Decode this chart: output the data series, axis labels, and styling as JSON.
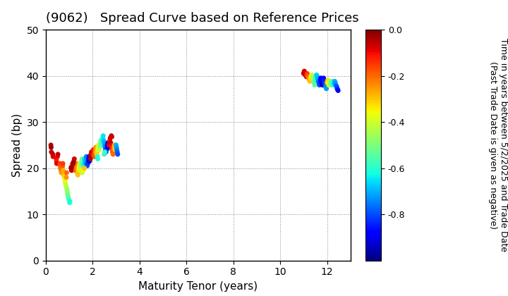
{
  "title": "(9062)   Spread Curve based on Reference Prices",
  "xlabel": "Maturity Tenor (years)",
  "ylabel": "Spread (bp)",
  "colorbar_label_line1": "Time in years between 5/2/2025 and Trade Date",
  "colorbar_label_line2": "(Past Trade Date is given as negative)",
  "xlim": [
    0,
    13
  ],
  "ylim": [
    0,
    50
  ],
  "xticks": [
    0,
    2,
    4,
    6,
    8,
    10,
    12
  ],
  "yticks": [
    0,
    10,
    20,
    30,
    40,
    50
  ],
  "cmap": "jet",
  "clim": [
    -1.0,
    0.0
  ],
  "cticks": [
    0.0,
    -0.2,
    -0.4,
    -0.6,
    -0.8
  ],
  "cluster1": {
    "points": [
      [
        0.22,
        25.0,
        -0.05
      ],
      [
        0.23,
        24.5,
        -0.03
      ],
      [
        0.24,
        23.5,
        -0.07
      ],
      [
        0.3,
        23.0,
        -0.05
      ],
      [
        0.31,
        22.5,
        -0.08
      ],
      [
        0.45,
        22.0,
        -0.1
      ],
      [
        0.46,
        21.5,
        -0.12
      ],
      [
        0.47,
        21.0,
        -0.08
      ],
      [
        0.5,
        22.5,
        -0.1
      ],
      [
        0.52,
        23.0,
        -0.06
      ],
      [
        0.6,
        21.0,
        -0.15
      ],
      [
        0.62,
        20.5,
        -0.18
      ],
      [
        0.63,
        20.0,
        -0.2
      ],
      [
        0.65,
        19.5,
        -0.22
      ],
      [
        0.67,
        19.0,
        -0.25
      ],
      [
        0.7,
        20.0,
        -0.2
      ],
      [
        0.72,
        20.5,
        -0.18
      ],
      [
        0.73,
        21.0,
        -0.15
      ],
      [
        0.75,
        19.5,
        -0.28
      ],
      [
        0.77,
        18.5,
        -0.3
      ],
      [
        0.8,
        18.0,
        -0.32
      ],
      [
        0.82,
        17.5,
        -0.35
      ],
      [
        0.83,
        17.0,
        -0.38
      ],
      [
        0.85,
        16.5,
        -0.4
      ],
      [
        0.87,
        16.0,
        -0.42
      ],
      [
        0.9,
        15.5,
        -0.45
      ],
      [
        0.92,
        15.0,
        -0.48
      ],
      [
        0.93,
        14.5,
        -0.5
      ],
      [
        0.95,
        14.0,
        -0.52
      ],
      [
        0.97,
        13.5,
        -0.55
      ],
      [
        1.0,
        13.0,
        -0.58
      ],
      [
        1.02,
        12.5,
        -0.6
      ],
      [
        1.03,
        12.8,
        -0.62
      ],
      [
        0.88,
        18.0,
        -0.25
      ],
      [
        0.89,
        19.0,
        -0.2
      ],
      [
        1.1,
        19.5,
        -0.05
      ],
      [
        1.12,
        19.8,
        -0.03
      ],
      [
        1.13,
        20.0,
        -0.07
      ],
      [
        1.15,
        21.0,
        -0.05
      ],
      [
        1.17,
        20.5,
        -0.08
      ],
      [
        1.2,
        21.5,
        -0.1
      ],
      [
        1.22,
        22.0,
        -0.08
      ],
      [
        1.23,
        21.0,
        -0.12
      ],
      [
        1.25,
        20.0,
        -0.15
      ],
      [
        1.27,
        19.5,
        -0.18
      ],
      [
        1.3,
        20.5,
        -0.2
      ],
      [
        1.32,
        21.0,
        -0.22
      ],
      [
        1.33,
        20.0,
        -0.25
      ],
      [
        1.35,
        19.0,
        -0.28
      ],
      [
        1.37,
        18.5,
        -0.3
      ],
      [
        1.4,
        19.5,
        -0.32
      ],
      [
        1.42,
        20.0,
        -0.35
      ],
      [
        1.43,
        20.5,
        -0.38
      ],
      [
        1.45,
        21.0,
        -0.4
      ],
      [
        1.47,
        20.0,
        -0.42
      ],
      [
        1.5,
        20.5,
        -0.45
      ],
      [
        1.52,
        21.0,
        -0.48
      ],
      [
        1.53,
        21.5,
        -0.5
      ],
      [
        1.55,
        22.0,
        -0.52
      ],
      [
        1.57,
        21.0,
        -0.55
      ],
      [
        1.6,
        20.5,
        -0.58
      ],
      [
        1.62,
        21.0,
        -0.6
      ],
      [
        1.63,
        21.5,
        -0.62
      ],
      [
        1.65,
        22.0,
        -0.65
      ],
      [
        1.67,
        21.0,
        -0.68
      ],
      [
        1.7,
        21.5,
        -0.7
      ],
      [
        1.72,
        22.0,
        -0.72
      ],
      [
        1.73,
        22.5,
        -0.75
      ],
      [
        1.75,
        21.0,
        -0.78
      ],
      [
        1.77,
        20.5,
        -0.8
      ],
      [
        1.8,
        21.0,
        -0.82
      ],
      [
        1.82,
        21.5,
        -0.85
      ],
      [
        1.83,
        22.0,
        -0.88
      ],
      [
        1.85,
        22.5,
        -0.9
      ],
      [
        1.87,
        21.5,
        -0.92
      ],
      [
        1.5,
        19.5,
        -0.4
      ],
      [
        1.55,
        19.0,
        -0.42
      ],
      [
        1.6,
        19.5,
        -0.35
      ],
      [
        1.65,
        20.0,
        -0.3
      ],
      [
        1.9,
        22.0,
        -0.05
      ],
      [
        1.92,
        22.5,
        -0.03
      ],
      [
        1.93,
        23.0,
        -0.07
      ],
      [
        1.95,
        23.5,
        -0.08
      ],
      [
        1.97,
        22.5,
        -0.05
      ],
      [
        2.0,
        23.0,
        -0.1
      ],
      [
        2.02,
        23.5,
        -0.08
      ],
      [
        2.03,
        24.0,
        -0.12
      ],
      [
        2.05,
        23.0,
        -0.15
      ],
      [
        2.07,
        22.5,
        -0.18
      ],
      [
        2.1,
        23.5,
        -0.2
      ],
      [
        2.12,
        24.0,
        -0.22
      ],
      [
        2.13,
        24.5,
        -0.25
      ],
      [
        2.15,
        23.5,
        -0.28
      ],
      [
        2.17,
        23.0,
        -0.3
      ],
      [
        2.2,
        23.5,
        -0.32
      ],
      [
        2.22,
        24.0,
        -0.35
      ],
      [
        2.23,
        24.5,
        -0.38
      ],
      [
        2.25,
        25.0,
        -0.4
      ],
      [
        2.27,
        24.0,
        -0.42
      ],
      [
        2.3,
        24.5,
        -0.45
      ],
      [
        2.32,
        25.0,
        -0.48
      ],
      [
        2.33,
        25.5,
        -0.5
      ],
      [
        2.35,
        26.0,
        -0.52
      ],
      [
        2.37,
        25.0,
        -0.55
      ],
      [
        2.4,
        25.5,
        -0.58
      ],
      [
        2.42,
        26.0,
        -0.6
      ],
      [
        2.43,
        26.5,
        -0.62
      ],
      [
        2.45,
        27.0,
        -0.65
      ],
      [
        2.47,
        26.0,
        -0.68
      ],
      [
        2.5,
        25.5,
        -0.7
      ],
      [
        2.52,
        25.0,
        -0.72
      ],
      [
        2.53,
        24.5,
        -0.75
      ],
      [
        2.55,
        24.0,
        -0.78
      ],
      [
        2.57,
        23.5,
        -0.8
      ],
      [
        2.6,
        24.0,
        -0.82
      ],
      [
        2.62,
        24.5,
        -0.85
      ],
      [
        2.63,
        25.0,
        -0.88
      ],
      [
        2.65,
        25.5,
        -0.9
      ],
      [
        2.67,
        24.5,
        -0.92
      ],
      [
        2.7,
        25.0,
        -0.1
      ],
      [
        2.72,
        25.5,
        -0.08
      ],
      [
        2.73,
        26.0,
        -0.12
      ],
      [
        2.75,
        26.5,
        -0.08
      ],
      [
        2.77,
        25.5,
        -0.05
      ],
      [
        2.8,
        25.0,
        -0.1
      ],
      [
        2.82,
        24.5,
        -0.12
      ],
      [
        2.83,
        24.0,
        -0.15
      ],
      [
        2.85,
        23.5,
        -0.18
      ],
      [
        2.87,
        23.0,
        -0.2
      ],
      [
        2.9,
        24.0,
        -0.22
      ],
      [
        2.92,
        24.5,
        -0.25
      ],
      [
        2.93,
        25.0,
        -0.28
      ],
      [
        2.95,
        24.5,
        -0.3
      ],
      [
        2.97,
        24.0,
        -0.32
      ],
      [
        3.0,
        25.0,
        -0.7
      ],
      [
        3.02,
        24.5,
        -0.72
      ],
      [
        3.03,
        24.0,
        -0.75
      ],
      [
        3.05,
        23.5,
        -0.78
      ],
      [
        3.07,
        23.0,
        -0.8
      ],
      [
        1.08,
        20.0,
        -0.05
      ],
      [
        1.09,
        20.2,
        -0.03
      ],
      [
        1.15,
        20.8,
        -0.05
      ],
      [
        1.18,
        21.2,
        -0.03
      ],
      [
        2.2,
        22.5,
        -0.6
      ],
      [
        2.22,
        22.0,
        -0.62
      ],
      [
        2.5,
        23.0,
        -0.6
      ],
      [
        2.52,
        23.5,
        -0.58
      ],
      [
        2.8,
        27.0,
        -0.05
      ],
      [
        2.82,
        26.8,
        -0.07
      ]
    ]
  },
  "cluster2": {
    "points": [
      [
        11.0,
        40.5,
        -0.05
      ],
      [
        11.02,
        40.8,
        -0.03
      ],
      [
        11.03,
        41.0,
        -0.07
      ],
      [
        11.05,
        40.5,
        -0.08
      ],
      [
        11.07,
        40.2,
        -0.05
      ],
      [
        11.1,
        40.0,
        -0.1
      ],
      [
        11.12,
        39.8,
        -0.08
      ],
      [
        11.13,
        40.2,
        -0.12
      ],
      [
        11.15,
        40.5,
        -0.15
      ],
      [
        11.17,
        40.0,
        -0.18
      ],
      [
        11.2,
        39.8,
        -0.2
      ],
      [
        11.22,
        39.5,
        -0.22
      ],
      [
        11.23,
        39.2,
        -0.25
      ],
      [
        11.25,
        39.0,
        -0.28
      ],
      [
        11.27,
        38.8,
        -0.3
      ],
      [
        11.3,
        39.5,
        -0.32
      ],
      [
        11.32,
        39.8,
        -0.35
      ],
      [
        11.33,
        40.0,
        -0.38
      ],
      [
        11.35,
        40.2,
        -0.4
      ],
      [
        11.37,
        40.0,
        -0.42
      ],
      [
        11.4,
        39.5,
        -0.45
      ],
      [
        11.42,
        39.0,
        -0.48
      ],
      [
        11.43,
        38.8,
        -0.5
      ],
      [
        11.45,
        38.5,
        -0.52
      ],
      [
        11.47,
        38.0,
        -0.55
      ],
      [
        11.5,
        39.0,
        -0.58
      ],
      [
        11.52,
        39.5,
        -0.6
      ],
      [
        11.53,
        40.0,
        -0.62
      ],
      [
        11.55,
        40.2,
        -0.65
      ],
      [
        11.57,
        40.0,
        -0.68
      ],
      [
        11.6,
        39.5,
        -0.7
      ],
      [
        11.62,
        39.0,
        -0.72
      ],
      [
        11.63,
        38.8,
        -0.75
      ],
      [
        11.65,
        38.5,
        -0.78
      ],
      [
        11.67,
        38.0,
        -0.8
      ],
      [
        11.7,
        38.5,
        -0.82
      ],
      [
        11.72,
        39.0,
        -0.85
      ],
      [
        11.73,
        39.5,
        -0.88
      ],
      [
        11.75,
        39.0,
        -0.9
      ],
      [
        11.77,
        38.5,
        -0.92
      ],
      [
        11.8,
        38.0,
        -0.95
      ],
      [
        11.82,
        38.5,
        -0.92
      ],
      [
        11.83,
        39.0,
        -0.9
      ],
      [
        11.85,
        39.5,
        -0.88
      ],
      [
        11.87,
        39.0,
        -0.85
      ],
      [
        11.9,
        38.5,
        -0.82
      ],
      [
        11.92,
        38.0,
        -0.8
      ],
      [
        11.93,
        37.8,
        -0.78
      ],
      [
        11.95,
        37.5,
        -0.75
      ],
      [
        11.97,
        37.2,
        -0.72
      ],
      [
        12.0,
        38.5,
        -0.3
      ],
      [
        12.02,
        38.8,
        -0.28
      ],
      [
        12.03,
        39.0,
        -0.32
      ],
      [
        12.05,
        38.5,
        -0.35
      ],
      [
        12.07,
        38.0,
        -0.38
      ],
      [
        12.1,
        38.2,
        -0.4
      ],
      [
        12.12,
        38.5,
        -0.42
      ],
      [
        12.13,
        38.8,
        -0.45
      ],
      [
        12.15,
        38.5,
        -0.48
      ],
      [
        12.17,
        38.0,
        -0.5
      ],
      [
        12.2,
        38.2,
        -0.52
      ],
      [
        12.22,
        38.5,
        -0.55
      ],
      [
        12.23,
        38.8,
        -0.58
      ],
      [
        12.25,
        38.5,
        -0.6
      ],
      [
        12.27,
        38.0,
        -0.62
      ],
      [
        12.3,
        38.2,
        -0.65
      ],
      [
        12.32,
        38.5,
        -0.68
      ],
      [
        12.33,
        38.8,
        -0.7
      ],
      [
        12.35,
        38.5,
        -0.72
      ],
      [
        12.37,
        38.0,
        -0.75
      ],
      [
        12.4,
        37.8,
        -0.78
      ],
      [
        12.42,
        37.5,
        -0.8
      ],
      [
        12.43,
        37.2,
        -0.82
      ],
      [
        12.45,
        37.0,
        -0.85
      ],
      [
        12.47,
        36.8,
        -0.88
      ]
    ]
  },
  "scatter_size": 25,
  "title_fontsize": 13,
  "axis_label_fontsize": 11,
  "tick_fontsize": 10,
  "colorbar_tick_fontsize": 9,
  "colorbar_label_fontsize": 9,
  "background_color": "#ffffff",
  "grid_color": "#888888",
  "grid_linestyle": ":"
}
